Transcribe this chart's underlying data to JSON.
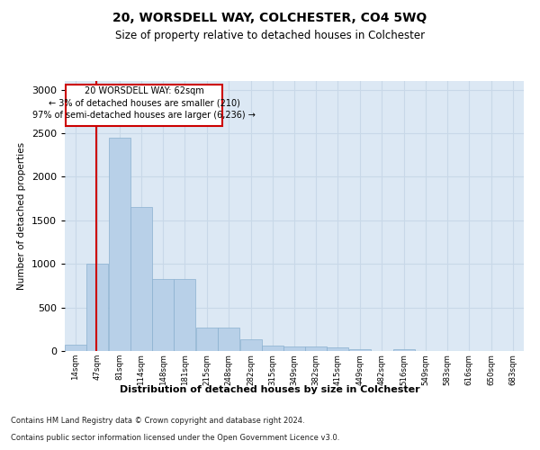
{
  "title": "20, WORSDELL WAY, COLCHESTER, CO4 5WQ",
  "subtitle": "Size of property relative to detached houses in Colchester",
  "xlabel": "Distribution of detached houses by size in Colchester",
  "ylabel": "Number of detached properties",
  "bar_color": "#b8d0e8",
  "bar_edge_color": "#8ab0d0",
  "grid_color": "#c8d8e8",
  "background_color": "#dce8f4",
  "annotation_box_color": "#cc0000",
  "property_line_color": "#cc0000",
  "footer_line1": "Contains HM Land Registry data © Crown copyright and database right 2024.",
  "footer_line2": "Contains public sector information licensed under the Open Government Licence v3.0.",
  "annotation_title": "20 WORSDELL WAY: 62sqm",
  "annotation_line1": "← 3% of detached houses are smaller (210)",
  "annotation_line2": "97% of semi-detached houses are larger (6,236) →",
  "property_size": 62,
  "categories": [
    "14sqm",
    "47sqm",
    "81sqm",
    "114sqm",
    "148sqm",
    "181sqm",
    "215sqm",
    "248sqm",
    "282sqm",
    "315sqm",
    "349sqm",
    "382sqm",
    "415sqm",
    "449sqm",
    "482sqm",
    "516sqm",
    "549sqm",
    "583sqm",
    "616sqm",
    "650sqm",
    "683sqm"
  ],
  "bin_edges": [
    14,
    47,
    81,
    114,
    148,
    181,
    215,
    248,
    282,
    315,
    349,
    382,
    415,
    449,
    482,
    516,
    549,
    583,
    616,
    650,
    683
  ],
  "values": [
    70,
    1000,
    2450,
    1650,
    830,
    830,
    270,
    270,
    130,
    65,
    55,
    55,
    40,
    20,
    0,
    25,
    0,
    0,
    0,
    0,
    0
  ],
  "ylim": [
    0,
    3100
  ],
  "yticks": [
    0,
    500,
    1000,
    1500,
    2000,
    2500,
    3000
  ]
}
